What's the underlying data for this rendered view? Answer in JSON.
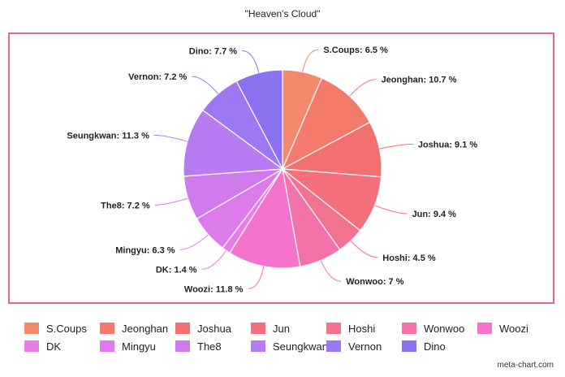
{
  "chart_data": {
    "type": "pie",
    "title": "\"Heaven's Cloud\"",
    "categories": [
      "S.Coups",
      "Jeonghan",
      "Joshua",
      "Jun",
      "Hoshi",
      "Wonwoo",
      "Woozi",
      "DK",
      "Mingyu",
      "The8",
      "Seungkwan",
      "Vernon",
      "Dino"
    ],
    "values": [
      6.5,
      10.7,
      9.1,
      9.4,
      4.5,
      7,
      11.8,
      1.4,
      6.3,
      7.2,
      11.3,
      7.2,
      7.7
    ],
    "value_labels": [
      "S.Coups: 6.5 %",
      "Jeonghan: 10.7 %",
      "Joshua: 9.1 %",
      "Jun: 9.4 %",
      "Hoshi: 4.5 %",
      "Wonwoo: 7 %",
      "Woozi: 11.8 %",
      "DK: 1.4 %",
      "Mingyu: 6.3 %",
      "The8: 7.2 %",
      "Seungkwan: 11.3 %",
      "Vernon: 7.2 %",
      "Dino: 7.7 %"
    ],
    "colors": [
      "#f4896b",
      "#f47a6b",
      "#f2706f",
      "#f36f7c",
      "#f2738e",
      "#f272a9",
      "#f473cc",
      "#e87ee4",
      "#dd7bec",
      "#d07aee",
      "#b77bf2",
      "#9d78f3",
      "#8b72f0"
    ],
    "start_angle_deg": 0,
    "direction": "clockwise",
    "legend_position": "bottom"
  },
  "footer": {
    "credit": "meta-chart.com"
  },
  "style": {
    "frame_border_color": "#e06b7d",
    "slice_border_color": "#ffffff",
    "leader_line_color": "same-as-slice"
  }
}
